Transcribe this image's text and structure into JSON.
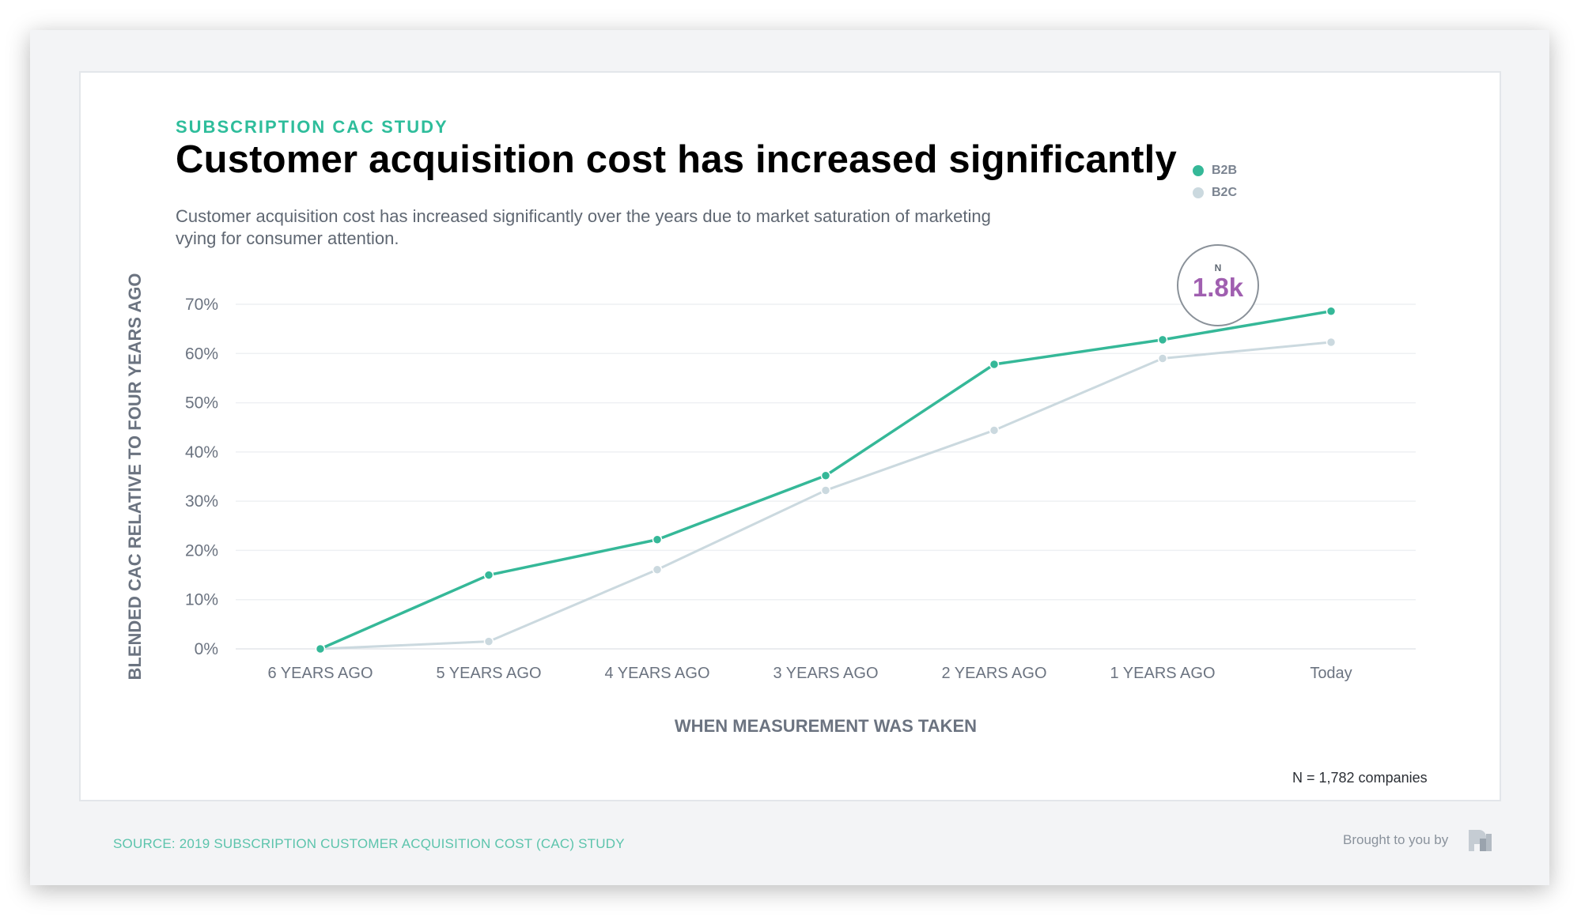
{
  "header": {
    "kicker": "SUBSCRIPTION CAC STUDY",
    "title": "Customer acquisition cost has increased significantly",
    "subtitle": "Customer acquisition cost has increased significantly over the years due to market saturation of marketing vying for consumer attention."
  },
  "badge": {
    "letter": "N",
    "value": "1.8k"
  },
  "footer": {
    "n_note": "N = 1,782 companies",
    "source": "SOURCE: 2019 SUBSCRIPTION CUSTOMER ACQUISITION COST (CAC) STUDY",
    "brought": "Brought to you by",
    "logo_icon": "profitwell-logo-icon"
  },
  "colors": {
    "b2b": "#35b898",
    "b2c": "#cbd9df",
    "accent": "#2ebd9b",
    "badge": "#a05fb0"
  },
  "chart_data": {
    "type": "line",
    "title": "Customer acquisition cost has increased significantly",
    "xlabel": "WHEN MEASUREMENT WAS TAKEN",
    "ylabel": "BLENDED CAC RELATIVE TO FOUR YEARS AGO",
    "categories": [
      "6 YEARS AGO",
      "5 YEARS AGO",
      "4 YEARS AGO",
      "3 YEARS AGO",
      "2 YEARS AGO",
      "1 YEARS AGO",
      "Today"
    ],
    "ylim": [
      0,
      70
    ],
    "yticks": [
      0,
      10,
      20,
      30,
      40,
      50,
      60,
      70
    ],
    "ytick_labels": [
      "0%",
      "10%",
      "20%",
      "30%",
      "40%",
      "50%",
      "60%",
      "70%"
    ],
    "grid": true,
    "legend": "top-right",
    "series": [
      {
        "name": "B2B",
        "values": [
          0,
          15,
          22.2,
          35.2,
          57.8,
          62.8,
          68.6
        ]
      },
      {
        "name": "B2C",
        "values": [
          0,
          1.5,
          16.1,
          32.2,
          44.4,
          59,
          62.3
        ]
      }
    ]
  }
}
